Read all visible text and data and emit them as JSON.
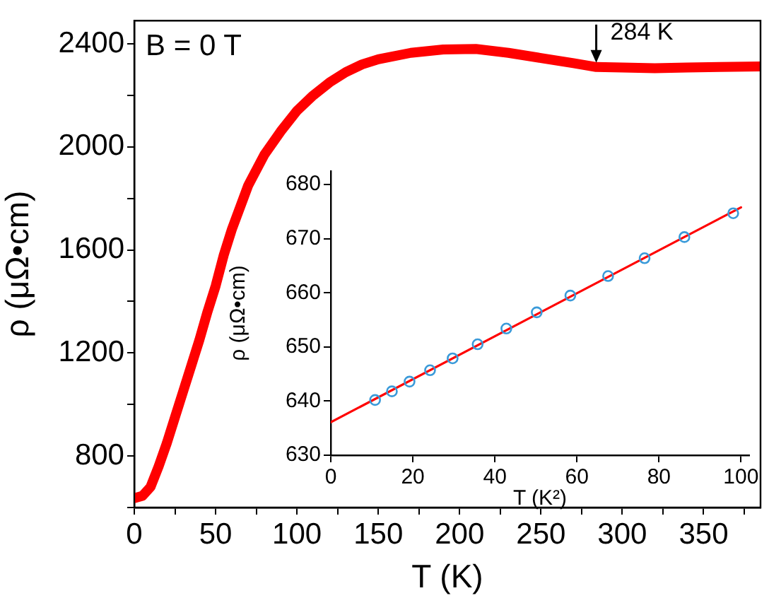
{
  "chart_data": [
    {
      "type": "line",
      "xlabel": "T (K)",
      "ylabel": "ρ (μΩ•cm)",
      "annotations": [
        "B = 0 T",
        {
          "text": "284 K",
          "x": 284,
          "y": 2310
        }
      ],
      "x": [
        0,
        5,
        10,
        15,
        20,
        25,
        30,
        35,
        40,
        45,
        50,
        55,
        60,
        70,
        80,
        90,
        100,
        110,
        120,
        130,
        140,
        150,
        170,
        190,
        210,
        230,
        250,
        270,
        284,
        300,
        320,
        340,
        360,
        385
      ],
      "series": [
        {
          "color": "#ff0000",
          "values": [
            636,
            645,
            680,
            760,
            850,
            950,
            1050,
            1150,
            1250,
            1360,
            1460,
            1580,
            1680,
            1850,
            1970,
            2060,
            2140,
            2200,
            2250,
            2290,
            2320,
            2340,
            2365,
            2378,
            2380,
            2365,
            2345,
            2325,
            2310,
            2308,
            2305,
            2308,
            2310,
            2312
          ]
        }
      ],
      "xlim": [
        0,
        385
      ],
      "xticks": [
        0,
        {
          "value": 25,
          "label": null
        },
        50,
        {
          "value": 75,
          "label": null
        },
        100,
        {
          "value": 125,
          "label": null
        },
        150,
        {
          "value": 175,
          "label": null
        },
        200,
        {
          "value": 225,
          "label": null
        },
        250,
        {
          "value": 275,
          "label": null
        },
        300,
        {
          "value": 325,
          "label": null
        },
        350,
        {
          "value": 375,
          "label": null
        }
      ],
      "ylim": [
        600,
        2490
      ],
      "yticks": [
        {
          "value": 600,
          "label": null
        },
        800,
        {
          "value": 1000,
          "label": null
        },
        1200,
        {
          "value": 1400,
          "label": null
        },
        1600,
        {
          "value": 1800,
          "label": null
        },
        2000,
        {
          "value": 2200,
          "label": null
        },
        2400
      ],
      "grid": false,
      "legend": false,
      "line_style": "solid"
    },
    {
      "type": "scatter",
      "xlabel": "T (K²)",
      "ylabel": "ρ (μΩ•cm)",
      "series": [
        {
          "type": "scatter",
          "color": "#3a9ad9",
          "marker": "circle",
          "x": [
            10.8,
            14.9,
            19.2,
            24.2,
            29.7,
            35.8,
            42.8,
            50.2,
            58.4,
            67.6,
            76.5,
            86.2,
            98.1
          ],
          "values": [
            640.2,
            641.8,
            643.6,
            645.7,
            647.9,
            650.5,
            653.4,
            656.4,
            659.5,
            663.1,
            666.4,
            670.3,
            674.7
          ]
        },
        {
          "type": "line",
          "color": "#ff0000",
          "x": [
            0,
            100
          ],
          "values": [
            636.1,
            675.8
          ]
        }
      ],
      "xlim": [
        0,
        102
      ],
      "xticks": [
        0,
        20,
        40,
        60,
        80,
        100
      ],
      "ylim": [
        630,
        682.5
      ],
      "yticks": [
        630,
        640,
        650,
        660,
        670,
        680
      ],
      "grid": false,
      "legend": false
    }
  ]
}
